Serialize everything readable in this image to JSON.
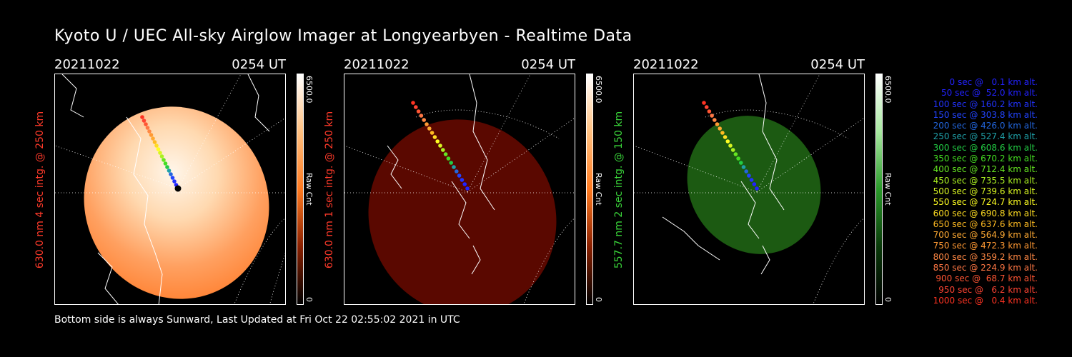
{
  "header": {
    "title": "Kyoto U / UEC All-sky Airglow Imager at Longyearbyen - Realtime Data"
  },
  "footer": {
    "text": "Bottom side is always Sunward, Last Updated at Fri Oct 22 02:55:02 2021 in UTC"
  },
  "panels": [
    {
      "date": "20211022",
      "time": "0254 UT",
      "side_label": "630.0 nm 4 sec intg. @ 250 km",
      "side_color": "#ff3a2a",
      "cbar_max": "6500.0",
      "cbar_min": "0",
      "cbar_label": "Raw Cnt",
      "image_color": "#ff8c2a",
      "cbar_top": "#ffffff",
      "cbar_bottom": "#000000"
    },
    {
      "date": "20211022",
      "time": "0254 UT",
      "side_label": "630.0 nm 1 sec intg. @ 250 km",
      "side_color": "#ff3a2a",
      "cbar_max": "6500.0",
      "cbar_min": "0",
      "cbar_label": "Raw Cnt",
      "image_color": "#5a0a00",
      "cbar_top": "#ffffff",
      "cbar_bottom": "#000000"
    },
    {
      "date": "20211022",
      "time": "0254 UT",
      "side_label": "557.7 nm 2 sec intg. @ 150 km",
      "side_color": "#3ad53a",
      "cbar_max": "6500.0",
      "cbar_min": "0",
      "cbar_label": "Raw Cnt",
      "image_color": "#1e5a14",
      "cbar_top": "#ffffff",
      "cbar_bottom": "#000000"
    }
  ],
  "legend": [
    {
      "text": "0 sec @   0.1 km alt.",
      "color": "#2222ff"
    },
    {
      "text": "50 sec @  52.0 km alt.",
      "color": "#2222ff"
    },
    {
      "text": "100 sec @ 160.2 km alt.",
      "color": "#2233ff"
    },
    {
      "text": "150 sec @ 303.8 km alt.",
      "color": "#2244ff"
    },
    {
      "text": "200 sec @ 426.0 km alt.",
      "color": "#2266dd"
    },
    {
      "text": "250 sec @ 527.4 km alt.",
      "color": "#1fa0a8"
    },
    {
      "text": "300 sec @ 608.6 km alt.",
      "color": "#22cc44"
    },
    {
      "text": "350 sec @ 670.2 km alt.",
      "color": "#44dd22"
    },
    {
      "text": "400 sec @ 712.4 km alt.",
      "color": "#66e622"
    },
    {
      "text": "450 sec @ 735.5 km alt.",
      "color": "#aaf022"
    },
    {
      "text": "500 sec @ 739.6 km alt.",
      "color": "#d8f522"
    },
    {
      "text": "550 sec @ 724.7 km alt.",
      "color": "#ffff22"
    },
    {
      "text": "600 sec @ 690.8 km alt.",
      "color": "#ffdd22"
    },
    {
      "text": "650 sec @ 637.6 km alt.",
      "color": "#ffbb22"
    },
    {
      "text": "700 sec @ 564.9 km alt.",
      "color": "#ffaa33"
    },
    {
      "text": "750 sec @ 472.3 km alt.",
      "color": "#ff9933"
    },
    {
      "text": "800 sec @ 359.2 km alt.",
      "color": "#ff8844"
    },
    {
      "text": "850 sec @ 224.9 km alt.",
      "color": "#ff7744"
    },
    {
      "text": "900 sec @  68.7 km alt.",
      "color": "#ff5533"
    },
    {
      "text": "950 sec @   6.2 km alt.",
      "color": "#ff4433"
    },
    {
      "text": "1000 sec @   0.4 km alt.",
      "color": "#ff3322"
    }
  ]
}
